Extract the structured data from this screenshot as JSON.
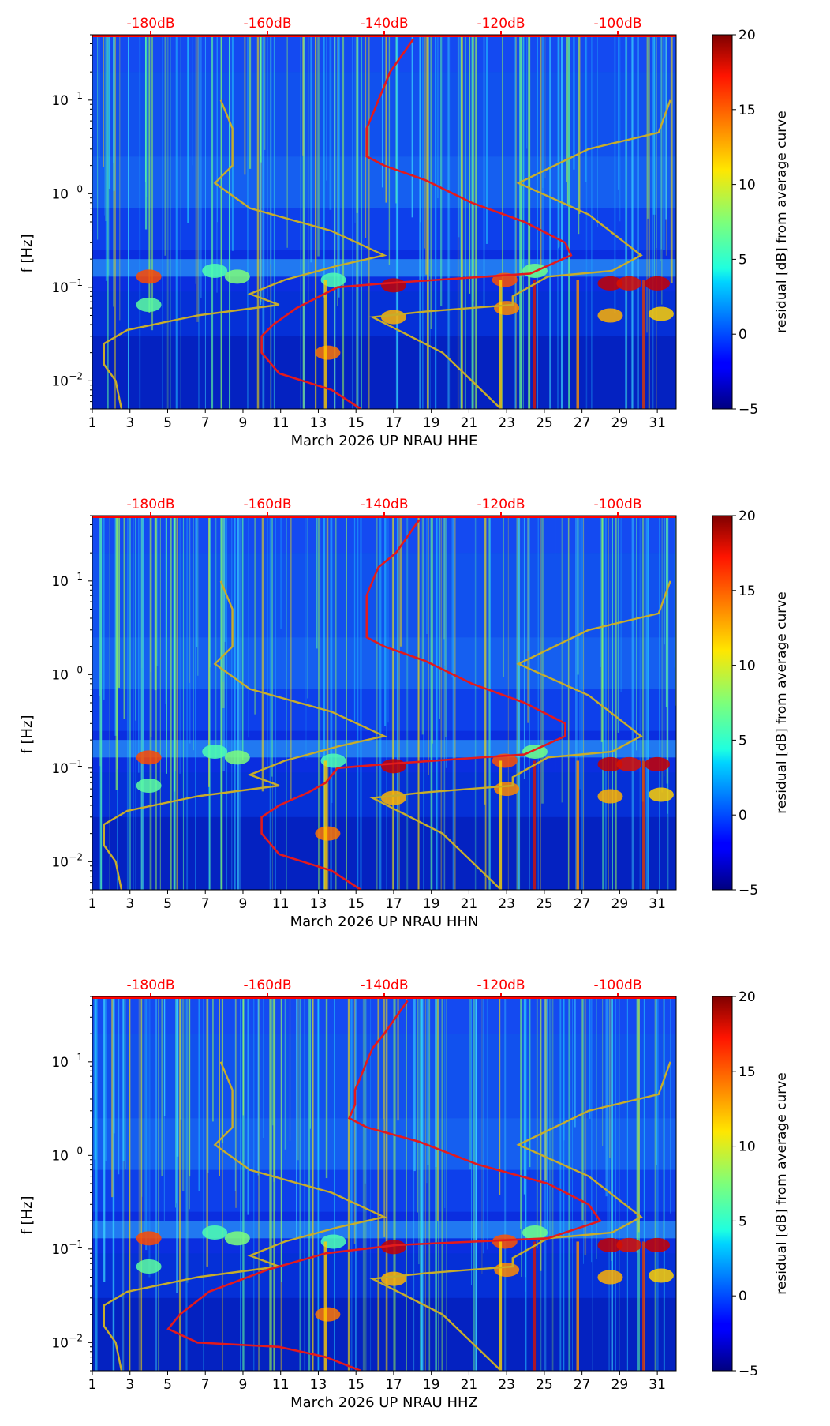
{
  "colors": {
    "db_axis": "#ff0000",
    "pdf_curve": "#e41a1c",
    "noise_model": "#c8ad2a",
    "background": "#ffffff"
  },
  "chart_data": [
    {
      "type": "heatmap",
      "component": "HHE",
      "xlabel": "March 2026 UP NRAU  HHE",
      "ylabel": "f [Hz]",
      "x_ticks": [
        "1",
        "3",
        "5",
        "7",
        "9",
        "11",
        "13",
        "15",
        "17",
        "19",
        "21",
        "23",
        "25",
        "27",
        "29",
        "31"
      ],
      "xlim": [
        1,
        32
      ],
      "y_ticks": [
        {
          "base": "10",
          "exp": "1",
          "value": 10
        },
        {
          "base": "10",
          "exp": "0",
          "value": 1
        },
        {
          "base": "10",
          "exp": "−1",
          "value": 0.1
        },
        {
          "base": "10",
          "exp": "−2",
          "value": 0.01
        }
      ],
      "ylim": [
        0.005,
        50
      ],
      "y_scale": "log",
      "top_axis_labels": [
        "-180dB",
        "-160dB",
        "-140dB",
        "-120dB",
        "-100dB"
      ],
      "top_axis_values": [
        -180,
        -160,
        -140,
        -120,
        -100
      ],
      "top_axis_range": [
        -190,
        -90
      ],
      "colorbar": {
        "label": "residual [dB] from average curve",
        "ticks": [
          "20",
          "15",
          "10",
          "5",
          "0",
          "−5"
        ],
        "range": [
          -5,
          20
        ],
        "colormap": "jet"
      },
      "psd_curve": {
        "name": "median PSD",
        "points": [
          [
            -135,
            45
          ],
          [
            -137,
            30
          ],
          [
            -139,
            20
          ],
          [
            -140,
            14
          ],
          [
            -141,
            10
          ],
          [
            -142,
            7
          ],
          [
            -143,
            5
          ],
          [
            -143,
            3.5
          ],
          [
            -143,
            2.5
          ],
          [
            -140,
            2
          ],
          [
            -133,
            1.4
          ],
          [
            -125,
            0.8
          ],
          [
            -116,
            0.5
          ],
          [
            -109,
            0.3
          ],
          [
            -108,
            0.22
          ],
          [
            -115,
            0.14
          ],
          [
            -140,
            0.11
          ],
          [
            -148,
            0.1
          ],
          [
            -155,
            0.06
          ],
          [
            -159,
            0.04
          ],
          [
            -161,
            0.03
          ],
          [
            -161,
            0.02
          ],
          [
            -158,
            0.012
          ],
          [
            -149,
            0.008
          ],
          [
            -144,
            0.005
          ]
        ]
      },
      "model_curves": [
        {
          "name": "NLNM",
          "points": [
            [
              -168,
              10
            ],
            [
              -166,
              5
            ],
            [
              -166,
              2
            ],
            [
              -169,
              1.3
            ],
            [
              -163,
              0.7
            ],
            [
              -149,
              0.4
            ],
            [
              -140,
              0.22
            ],
            [
              -148,
              0.17
            ],
            [
              -157,
              0.12
            ],
            [
              -163,
              0.085
            ],
            [
              -158,
              0.065
            ],
            [
              -172,
              0.05
            ],
            [
              -184,
              0.035
            ],
            [
              -188,
              0.025
            ],
            [
              -188,
              0.015
            ],
            [
              -186,
              0.01
            ],
            [
              -185,
              0.005
            ]
          ]
        },
        {
          "name": "NHNM",
          "points": [
            [
              -91,
              10
            ],
            [
              -93,
              4.5
            ],
            [
              -105,
              3
            ],
            [
              -117,
              1.3
            ],
            [
              -105,
              0.6
            ],
            [
              -96,
              0.22
            ],
            [
              -101,
              0.15
            ],
            [
              -112,
              0.13
            ],
            [
              -118,
              0.08
            ],
            [
              -118,
              0.065
            ],
            [
              -133,
              0.055
            ],
            [
              -142,
              0.048
            ],
            [
              -130,
              0.02
            ],
            [
              -125,
              0.01
            ],
            [
              -120,
              0.005
            ]
          ]
        }
      ]
    },
    {
      "type": "heatmap",
      "component": "HHN",
      "xlabel": "March 2026 UP NRAU  HHN",
      "ylabel": "f [Hz]",
      "x_ticks": [
        "1",
        "3",
        "5",
        "7",
        "9",
        "11",
        "13",
        "15",
        "17",
        "19",
        "21",
        "23",
        "25",
        "27",
        "29",
        "31"
      ],
      "xlim": [
        1,
        32
      ],
      "y_ticks": [
        {
          "base": "10",
          "exp": "1",
          "value": 10
        },
        {
          "base": "10",
          "exp": "0",
          "value": 1
        },
        {
          "base": "10",
          "exp": "−1",
          "value": 0.1
        },
        {
          "base": "10",
          "exp": "−2",
          "value": 0.01
        }
      ],
      "ylim": [
        0.005,
        50
      ],
      "y_scale": "log",
      "top_axis_labels": [
        "-180dB",
        "-160dB",
        "-140dB",
        "-120dB",
        "-100dB"
      ],
      "top_axis_values": [
        -180,
        -160,
        -140,
        -120,
        -100
      ],
      "top_axis_range": [
        -190,
        -90
      ],
      "colorbar": {
        "label": "residual [dB] from average curve",
        "ticks": [
          "20",
          "15",
          "10",
          "5",
          "0",
          "−5"
        ],
        "range": [
          -5,
          20
        ],
        "colormap": "jet"
      },
      "psd_curve": {
        "name": "median PSD",
        "points": [
          [
            -134,
            45
          ],
          [
            -136,
            30
          ],
          [
            -138,
            20
          ],
          [
            -141,
            14
          ],
          [
            -142,
            10
          ],
          [
            -143,
            7
          ],
          [
            -143,
            5
          ],
          [
            -143,
            3.5
          ],
          [
            -143,
            2.5
          ],
          [
            -140,
            2
          ],
          [
            -133,
            1.4
          ],
          [
            -125,
            0.8
          ],
          [
            -116,
            0.5
          ],
          [
            -109,
            0.3
          ],
          [
            -109,
            0.22
          ],
          [
            -116,
            0.14
          ],
          [
            -140,
            0.11
          ],
          [
            -148,
            0.1
          ],
          [
            -150,
            0.07
          ],
          [
            -153,
            0.055
          ],
          [
            -158,
            0.04
          ],
          [
            -161,
            0.03
          ],
          [
            -161,
            0.02
          ],
          [
            -158,
            0.012
          ],
          [
            -149,
            0.008
          ],
          [
            -144,
            0.005
          ]
        ]
      },
      "model_curves": [
        {
          "name": "NLNM",
          "points": [
            [
              -168,
              10
            ],
            [
              -166,
              5
            ],
            [
              -166,
              2
            ],
            [
              -169,
              1.3
            ],
            [
              -163,
              0.7
            ],
            [
              -149,
              0.4
            ],
            [
              -140,
              0.22
            ],
            [
              -148,
              0.17
            ],
            [
              -157,
              0.12
            ],
            [
              -163,
              0.085
            ],
            [
              -158,
              0.065
            ],
            [
              -172,
              0.05
            ],
            [
              -184,
              0.035
            ],
            [
              -188,
              0.025
            ],
            [
              -188,
              0.015
            ],
            [
              -186,
              0.01
            ],
            [
              -185,
              0.005
            ]
          ]
        },
        {
          "name": "NHNM",
          "points": [
            [
              -91,
              10
            ],
            [
              -93,
              4.5
            ],
            [
              -105,
              3
            ],
            [
              -117,
              1.3
            ],
            [
              -105,
              0.6
            ],
            [
              -96,
              0.22
            ],
            [
              -101,
              0.15
            ],
            [
              -112,
              0.13
            ],
            [
              -118,
              0.08
            ],
            [
              -118,
              0.065
            ],
            [
              -133,
              0.055
            ],
            [
              -142,
              0.048
            ],
            [
              -130,
              0.02
            ],
            [
              -125,
              0.01
            ],
            [
              -120,
              0.005
            ]
          ]
        }
      ]
    },
    {
      "type": "heatmap",
      "component": "HHZ",
      "xlabel": "March 2026 UP NRAU  HHZ",
      "ylabel": "f [Hz]",
      "x_ticks": [
        "1",
        "3",
        "5",
        "7",
        "9",
        "11",
        "13",
        "15",
        "17",
        "19",
        "21",
        "23",
        "25",
        "27",
        "29",
        "31"
      ],
      "xlim": [
        1,
        32
      ],
      "y_ticks": [
        {
          "base": "10",
          "exp": "1",
          "value": 10
        },
        {
          "base": "10",
          "exp": "0",
          "value": 1
        },
        {
          "base": "10",
          "exp": "−1",
          "value": 0.1
        },
        {
          "base": "10",
          "exp": "−2",
          "value": 0.01
        }
      ],
      "ylim": [
        0.005,
        50
      ],
      "y_scale": "log",
      "top_axis_labels": [
        "-180dB",
        "-160dB",
        "-140dB",
        "-120dB",
        "-100dB"
      ],
      "top_axis_values": [
        -180,
        -160,
        -140,
        -120,
        -100
      ],
      "top_axis_range": [
        -190,
        -90
      ],
      "colorbar": {
        "label": "residual [dB] from average curve",
        "ticks": [
          "20",
          "15",
          "10",
          "5",
          "0",
          "−5"
        ],
        "range": [
          -5,
          20
        ],
        "colormap": "jet"
      },
      "psd_curve": {
        "name": "median PSD",
        "points": [
          [
            -136,
            45
          ],
          [
            -138,
            30
          ],
          [
            -140,
            20
          ],
          [
            -142,
            14
          ],
          [
            -143,
            10
          ],
          [
            -144,
            7
          ],
          [
            -145,
            5
          ],
          [
            -145,
            3.5
          ],
          [
            -146,
            2.5
          ],
          [
            -143,
            2
          ],
          [
            -134,
            1.4
          ],
          [
            -124,
            0.8
          ],
          [
            -112,
            0.5
          ],
          [
            -105,
            0.3
          ],
          [
            -103,
            0.2
          ],
          [
            -112,
            0.13
          ],
          [
            -138,
            0.11
          ],
          [
            -150,
            0.09
          ],
          [
            -160,
            0.06
          ],
          [
            -170,
            0.035
          ],
          [
            -175,
            0.02
          ],
          [
            -177,
            0.014
          ],
          [
            -172,
            0.01
          ],
          [
            -158,
            0.009
          ],
          [
            -150,
            0.007
          ],
          [
            -144,
            0.005
          ]
        ]
      },
      "model_curves": [
        {
          "name": "NLNM",
          "points": [
            [
              -168,
              10
            ],
            [
              -166,
              5
            ],
            [
              -166,
              2
            ],
            [
              -169,
              1.3
            ],
            [
              -163,
              0.7
            ],
            [
              -149,
              0.4
            ],
            [
              -140,
              0.22
            ],
            [
              -148,
              0.17
            ],
            [
              -157,
              0.12
            ],
            [
              -163,
              0.085
            ],
            [
              -158,
              0.065
            ],
            [
              -172,
              0.05
            ],
            [
              -184,
              0.035
            ],
            [
              -188,
              0.025
            ],
            [
              -188,
              0.015
            ],
            [
              -186,
              0.01
            ],
            [
              -185,
              0.005
            ]
          ]
        },
        {
          "name": "NHNM",
          "points": [
            [
              -91,
              10
            ],
            [
              -93,
              4.5
            ],
            [
              -105,
              3
            ],
            [
              -117,
              1.3
            ],
            [
              -105,
              0.6
            ],
            [
              -96,
              0.22
            ],
            [
              -101,
              0.15
            ],
            [
              -112,
              0.13
            ],
            [
              -118,
              0.08
            ],
            [
              -118,
              0.065
            ],
            [
              -133,
              0.055
            ],
            [
              -142,
              0.048
            ],
            [
              -130,
              0.02
            ],
            [
              -125,
              0.01
            ],
            [
              -120,
              0.005
            ]
          ]
        }
      ]
    }
  ]
}
